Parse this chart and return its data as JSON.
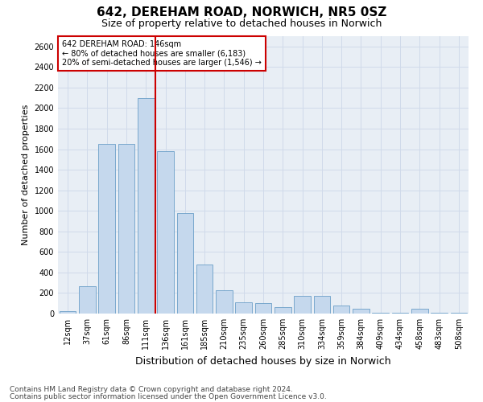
{
  "title": "642, DEREHAM ROAD, NORWICH, NR5 0SZ",
  "subtitle": "Size of property relative to detached houses in Norwich",
  "xlabel": "Distribution of detached houses by size in Norwich",
  "ylabel": "Number of detached properties",
  "categories": [
    "12sqm",
    "37sqm",
    "61sqm",
    "86sqm",
    "111sqm",
    "136sqm",
    "161sqm",
    "185sqm",
    "210sqm",
    "235sqm",
    "260sqm",
    "285sqm",
    "310sqm",
    "334sqm",
    "359sqm",
    "384sqm",
    "409sqm",
    "434sqm",
    "458sqm",
    "483sqm",
    "508sqm"
  ],
  "values": [
    25,
    270,
    1650,
    1650,
    2100,
    1580,
    980,
    480,
    230,
    110,
    100,
    60,
    170,
    170,
    80,
    45,
    10,
    10,
    45,
    10,
    10
  ],
  "bar_color": "#c5d8ed",
  "bar_edge_color": "#6b9fc8",
  "vline_color": "#cc0000",
  "annotation_text": "642 DEREHAM ROAD: 146sqm\n← 80% of detached houses are smaller (6,183)\n20% of semi-detached houses are larger (1,546) →",
  "annotation_box_color": "#cc0000",
  "ylim": [
    0,
    2700
  ],
  "yticks": [
    0,
    200,
    400,
    600,
    800,
    1000,
    1200,
    1400,
    1600,
    1800,
    2000,
    2200,
    2400,
    2600
  ],
  "footer1": "Contains HM Land Registry data © Crown copyright and database right 2024.",
  "footer2": "Contains public sector information licensed under the Open Government Licence v3.0.",
  "grid_color": "#d0daea",
  "background_color": "#e8eef5",
  "title_fontsize": 11,
  "subtitle_fontsize": 9,
  "ylabel_fontsize": 8,
  "xlabel_fontsize": 9,
  "tick_fontsize": 7,
  "annotation_fontsize": 7,
  "footer_fontsize": 6.5
}
